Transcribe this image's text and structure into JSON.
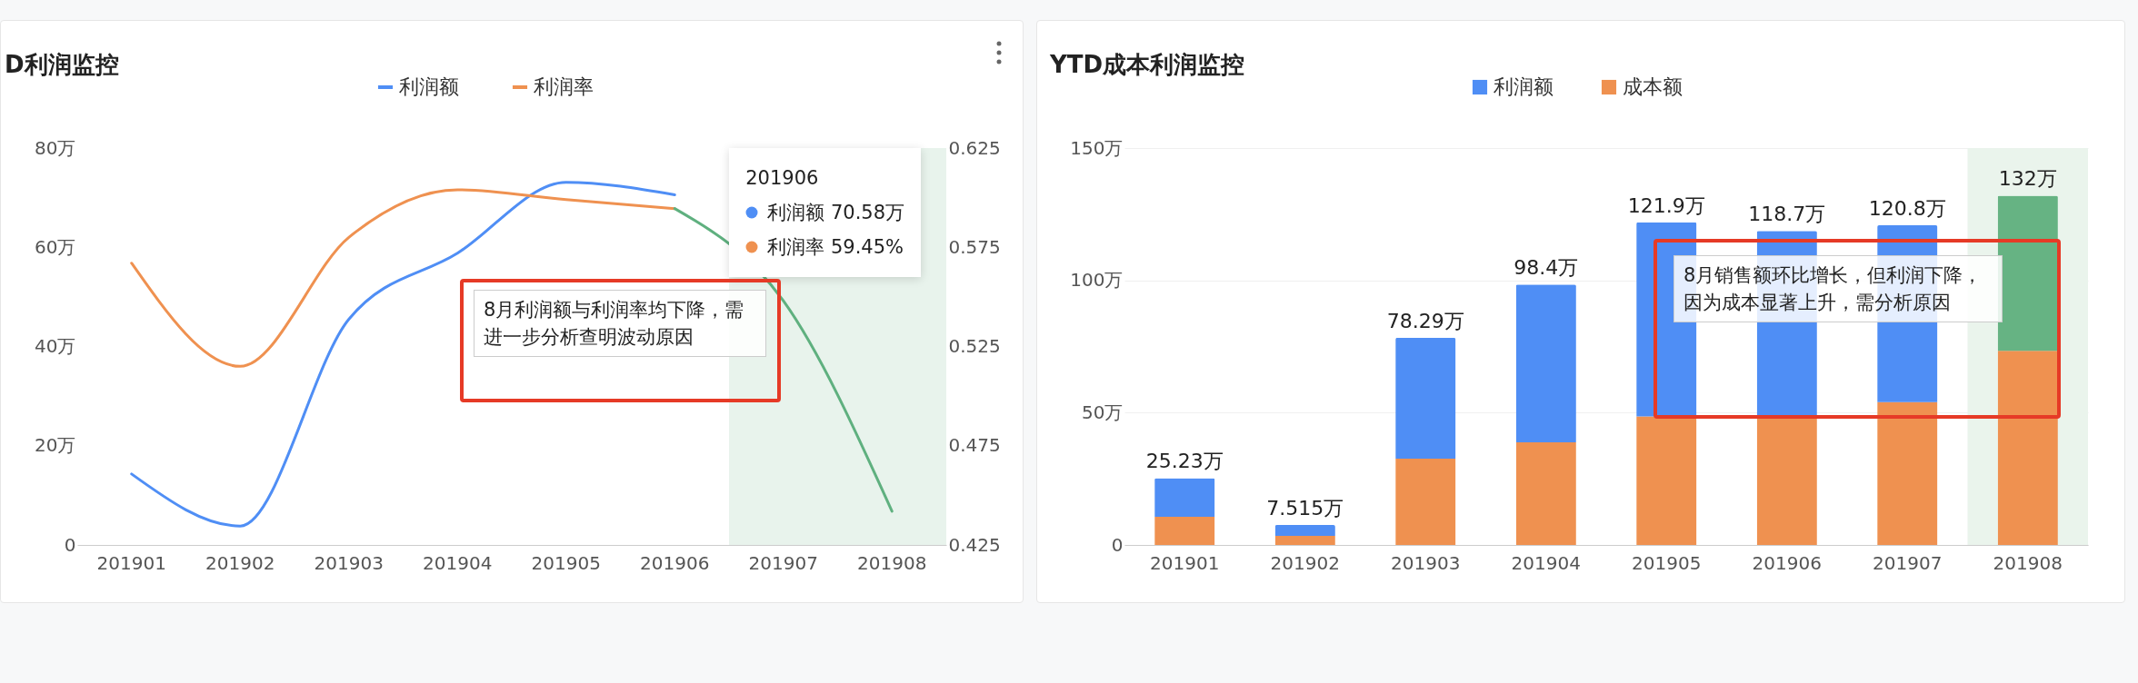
{
  "chart_data": [
    {
      "type": "line",
      "title": "D利润监控",
      "categories": [
        "201901",
        "201902",
        "201903",
        "201904",
        "201905",
        "201906",
        "201907",
        "201908"
      ],
      "series": [
        {
          "name": "利润额",
          "color": "#4f8ef5",
          "values": [
            14.3,
            3.8,
            45.5,
            58.8,
            73.1,
            70.58,
            null,
            null
          ]
        },
        {
          "name": "利润率",
          "color": "#ef9150",
          "axis": "y2",
          "values": [
            0.567,
            0.515,
            0.58,
            0.604,
            0.599,
            0.5945,
            null,
            null
          ]
        },
        {
          "color": "#5fb07f",
          "axis": "y2",
          "values": [
            null,
            null,
            null,
            null,
            null,
            0.5945,
            0.548,
            0.442
          ]
        }
      ],
      "ylim": [
        0,
        80
      ],
      "yticks": [
        0,
        {
          "value": 20,
          "label": "20万"
        },
        {
          "value": 40,
          "label": "40万"
        },
        {
          "value": 60,
          "label": "60万"
        },
        {
          "value": 80,
          "label": "80万"
        }
      ],
      "y2lim": [
        0.425,
        0.625
      ],
      "y2ticks": [
        0.425,
        0.475,
        0.525,
        0.575,
        0.625
      ],
      "bands": [
        {
          "axis": "x",
          "from": "201907",
          "to": "201908",
          "color": "#e8f3ec"
        }
      ],
      "legend": "top",
      "annotations": [
        "201906",
        "利润额  70.58万",
        "利润率  59.45%",
        "8月利润额与利润率均下降，需进一步分析查明波动原因"
      ]
    },
    {
      "type": "bar",
      "stacked": true,
      "title": "YTD成本利润监控",
      "categories": [
        "201901",
        "201902",
        "201903",
        "201904",
        "201905",
        "201906",
        "201907",
        "201908"
      ],
      "series": [
        {
          "name": "成本额",
          "color": "#ef9150",
          "values": [
            10.6,
            3.4,
            32.6,
            38.8,
            48.6,
            48.1,
            54.0,
            73.4
          ]
        },
        {
          "name": "利润额",
          "color": "#4f8ef5",
          "colors": [
            "#4f8ef5",
            "#4f8ef5",
            "#4f8ef5",
            "#4f8ef5",
            "#4f8ef5",
            "#4f8ef5",
            "#4f8ef5",
            "#66b383"
          ],
          "values": [
            14.63,
            4.115,
            45.69,
            59.6,
            73.3,
            70.6,
            66.8,
            58.6
          ]
        }
      ],
      "ylim": [
        0,
        150
      ],
      "yticks": [
        0,
        {
          "value": 50,
          "label": "50万"
        },
        {
          "value": 100,
          "label": "100万"
        },
        {
          "value": 150,
          "label": "150万"
        }
      ],
      "grid": "y",
      "totals": [
        "25.23万",
        "7.515万",
        "78.29万",
        "98.4万",
        "121.9万",
        "118.7万",
        "120.8万",
        "132万"
      ],
      "bands": [
        {
          "axis": "x",
          "from": "201908",
          "to": "201908",
          "color": "#eaf4ec"
        }
      ],
      "legend": "top",
      "annotations": [
        "8月销售额环比增长，但利润下降，因为成本显著上升，需分析原因"
      ]
    }
  ]
}
